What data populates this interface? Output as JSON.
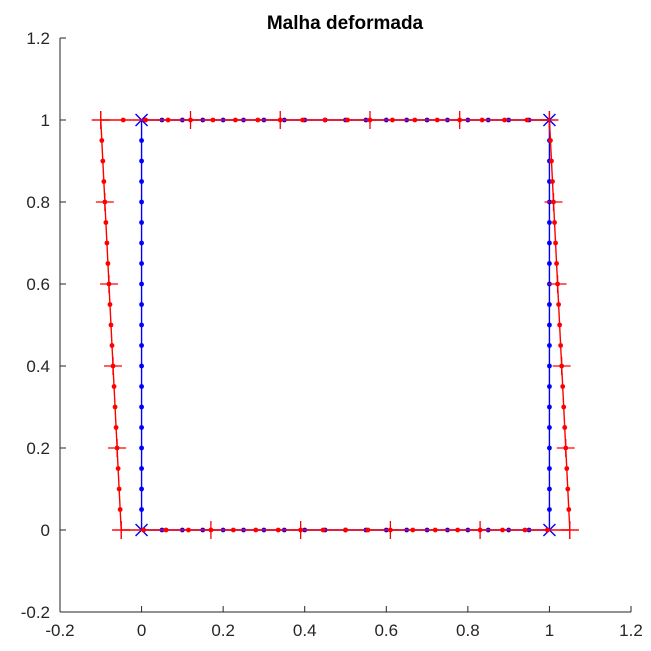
{
  "chart_data": {
    "type": "line",
    "title": "Malha deformada",
    "xlabel": "",
    "ylabel": "",
    "xlim": [
      -0.2,
      1.2
    ],
    "ylim": [
      -0.2,
      1.2
    ],
    "xticks": [
      "-0.2",
      "0",
      "0.2",
      "0.4",
      "0.6",
      "0.8",
      "1",
      "1.2"
    ],
    "yticks": [
      "-0.2",
      "0",
      "0.2",
      "0.4",
      "0.6",
      "0.8",
      "1",
      "1.2"
    ],
    "grid": false,
    "legend": "none",
    "series": [
      {
        "color": "#0000ff",
        "style": "original mesh",
        "corners": [
          [
            0,
            0
          ],
          [
            1,
            0
          ],
          [
            1,
            1
          ],
          [
            0,
            1
          ]
        ],
        "corner_marker": "x",
        "nodes_per_edge": 20
      },
      {
        "color": "#ff0000",
        "style": "deformed mesh",
        "corners": [
          [
            -0.05,
            0
          ],
          [
            1.05,
            0
          ],
          [
            1.0,
            1.0
          ],
          [
            -0.1,
            1.0
          ]
        ],
        "edge_marker": "+",
        "edge_marker_count": 5,
        "nodes_per_edge": 20
      }
    ]
  }
}
